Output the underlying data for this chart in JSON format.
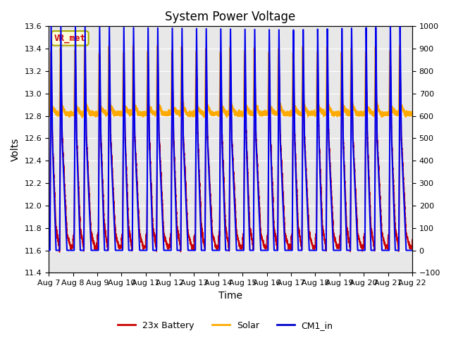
{
  "title": "System Power Voltage",
  "xlabel": "Time",
  "ylabel_left": "Volts",
  "ylim_left": [
    11.4,
    13.6
  ],
  "ylim_right": [
    -100,
    1000
  ],
  "yticks_left": [
    11.4,
    11.6,
    11.8,
    12.0,
    12.2,
    12.4,
    12.6,
    12.8,
    13.0,
    13.2,
    13.4,
    13.6
  ],
  "yticks_right": [
    -100,
    0,
    100,
    200,
    300,
    400,
    500,
    600,
    700,
    800,
    900,
    1000
  ],
  "xtick_labels": [
    "Aug 7",
    "Aug 8",
    "Aug 9",
    "Aug 10",
    "Aug 11",
    "Aug 12",
    "Aug 13",
    "Aug 14",
    "Aug 15",
    "Aug 16",
    "Aug 17",
    "Aug 18",
    "Aug 19",
    "Aug 20",
    "Aug 21",
    "Aug 22"
  ],
  "legend_labels": [
    "23x Battery",
    "Solar",
    "CM1_in"
  ],
  "legend_colors": [
    "#cc0000",
    "#ffaa00",
    "#0000cc"
  ],
  "annotation_text": "VR_met",
  "annotation_color": "#cc0000",
  "annotation_bg": "#ffffdd",
  "annotation_border": "#aaaa00",
  "bg_color": "#ffffff",
  "plot_bg_color": "#e8e8e8",
  "grid_color": "#ffffff",
  "line_battery": "#cc0000",
  "line_solar": "#ffaa00",
  "line_cm1": "#0000ee",
  "lw_battery": 1.2,
  "lw_solar": 1.5,
  "lw_cm1": 1.5,
  "n_days": 15,
  "pts_per_day": 400
}
